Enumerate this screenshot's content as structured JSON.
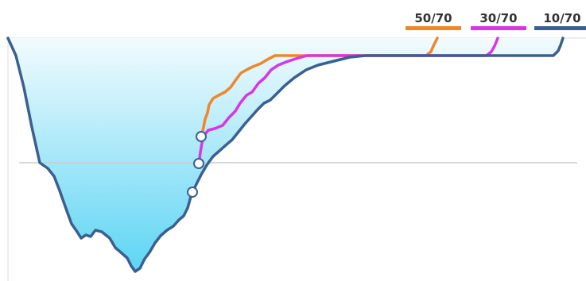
{
  "chart_data": {
    "type": "line",
    "title": "",
    "xlabel": "",
    "ylabel": "",
    "grid": false,
    "legend_position": "top-right",
    "colors": {
      "area_top": "#f2fbfe",
      "area_bottom": "#5dd5f3",
      "baseline_line": "#cccccc",
      "axis_line": "#dddddd",
      "marker_fill": "#ffffff",
      "marker_stroke": "#3b5f8f"
    },
    "series": [
      {
        "name": "50/70",
        "color": "#f0862a"
      },
      {
        "name": "30/70",
        "color": "#d935e6"
      },
      {
        "name": "10/70",
        "color": "#3b5f8f"
      }
    ]
  }
}
